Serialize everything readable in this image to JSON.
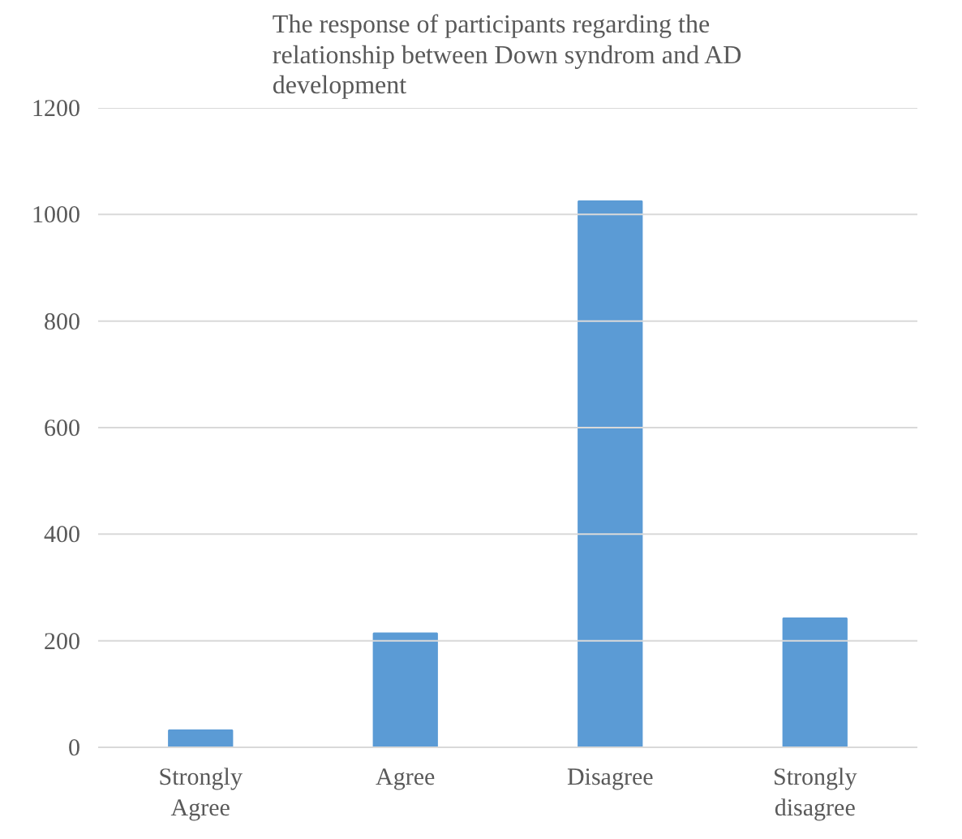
{
  "chart_data": {
    "type": "bar",
    "title": "The response of participants regarding the relationship between Down syndrom and AD development",
    "categories": [
      "Strongly Agree",
      "Agree",
      "Disagree",
      "Strongly disagree"
    ],
    "values": [
      32,
      214,
      1025,
      242
    ],
    "color": "#5b9bd5",
    "ylim": [
      0,
      1200
    ],
    "yticks": [
      0,
      200,
      400,
      600,
      800,
      1000,
      1200
    ],
    "grid": "y"
  }
}
